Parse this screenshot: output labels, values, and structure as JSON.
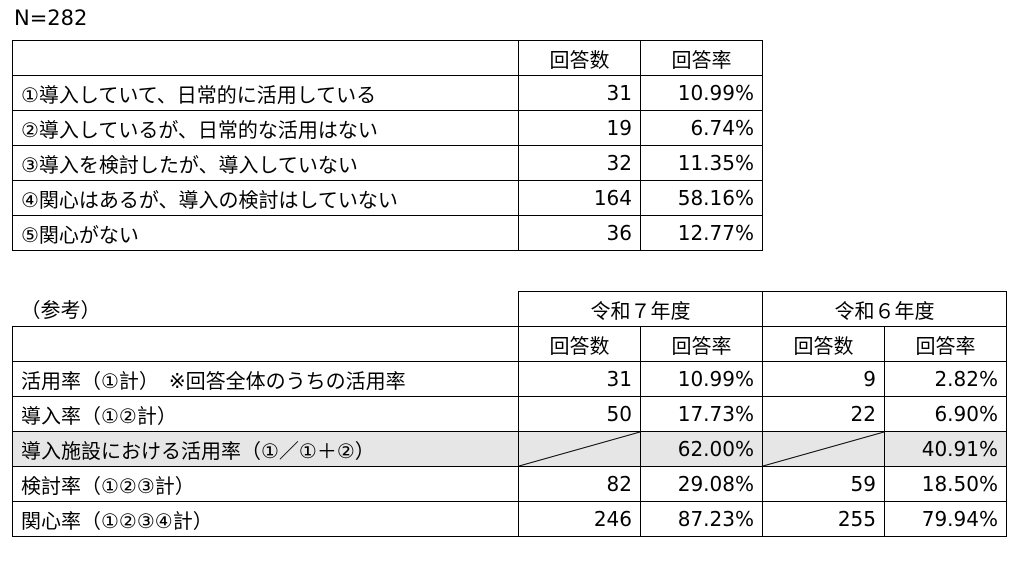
{
  "n_label": "N=282",
  "table1": {
    "headers": [
      "回答数",
      "回答率"
    ],
    "rows": [
      {
        "label": "①導入していて、日常的に活用している",
        "count": "31",
        "rate": "10.99%"
      },
      {
        "label": "②導入しているが、日常的な活用はない",
        "count": "19",
        "rate": "6.74%"
      },
      {
        "label": "③導入を検討したが、導入していない",
        "count": "32",
        "rate": "11.35%"
      },
      {
        "label": "④関心はあるが、導入の検討はしていない",
        "count": "164",
        "rate": "58.16%"
      },
      {
        "label": "⑤関心がない",
        "count": "36",
        "rate": "12.77%"
      }
    ]
  },
  "table2": {
    "title": "（参考）",
    "years": [
      "令和７年度",
      "令和６年度"
    ],
    "headers": [
      "回答数",
      "回答率",
      "回答数",
      "回答率"
    ],
    "rows": [
      {
        "label": "活用率（①計）　※回答全体のうちの活用率",
        "c7": "31",
        "r7": "10.99%",
        "c6": "9",
        "r6": "2.82%"
      },
      {
        "label": "導入率（①②計）",
        "c7": "50",
        "r7": "17.73%",
        "c6": "22",
        "r6": "6.90%"
      },
      {
        "label": "導入施設における活用率（①／①＋②）",
        "c7": "",
        "r7": "62.00%",
        "c6": "",
        "r6": "40.91%"
      },
      {
        "label": "検討率（①②③計）",
        "c7": "82",
        "r7": "29.08%",
        "c6": "59",
        "r6": "18.50%"
      },
      {
        "label": "関心率（①②③④計）",
        "c7": "246",
        "r7": "87.23%",
        "c6": "255",
        "r6": "79.94%"
      }
    ]
  }
}
